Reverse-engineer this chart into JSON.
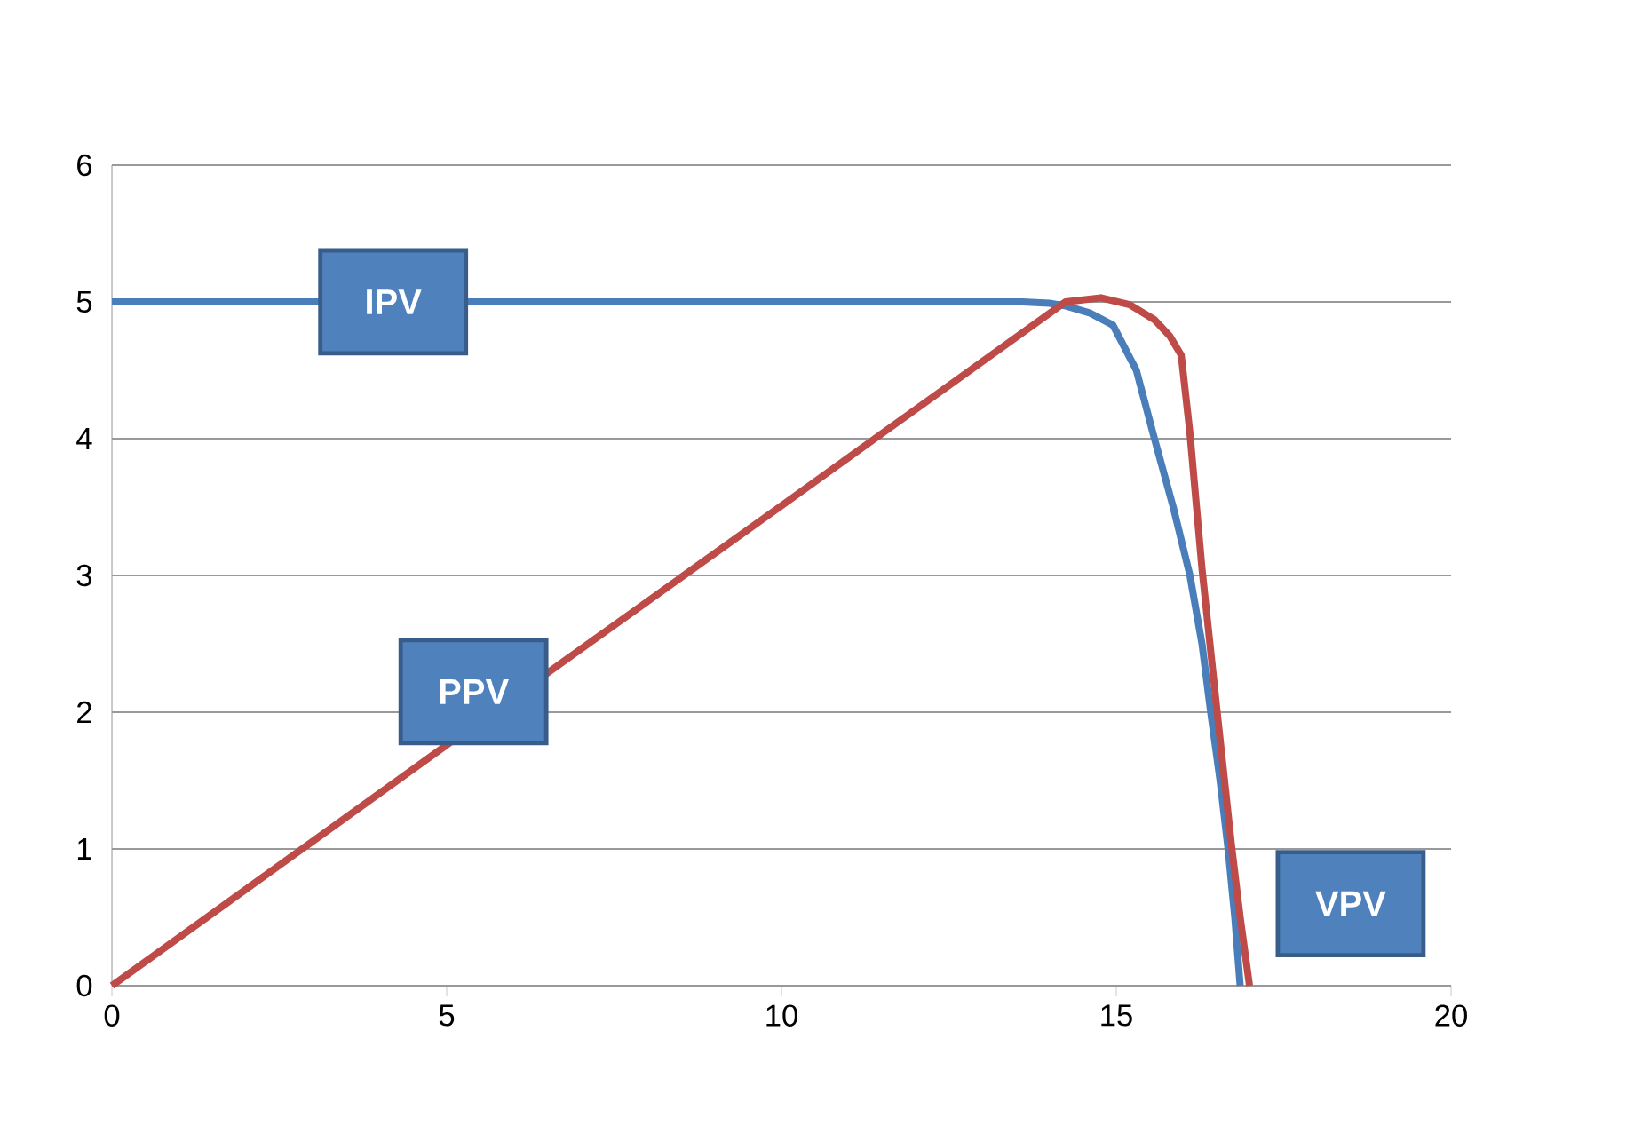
{
  "chart_data": {
    "type": "line",
    "xlabel": "VPV",
    "x": [
      0,
      2,
      6,
      8,
      10,
      12,
      13,
      13.6,
      14.0,
      14.25,
      14.6,
      14.95,
      15.3,
      15.57,
      15.85,
      16.1,
      16.28,
      16.41,
      16.55,
      16.67,
      16.77,
      16.85
    ],
    "series": [
      {
        "name": "IPV",
        "color": "#4a7ebb",
        "values": [
          5.0,
          5.0,
          5.0,
          5.0,
          5.0,
          5.0,
          5.0,
          5.0,
          4.99,
          4.97,
          4.92,
          4.83,
          4.5,
          4.0,
          3.5,
          3.0,
          2.5,
          2.0,
          1.5,
          1.0,
          0.5,
          0
        ]
      },
      {
        "name": "PPV",
        "color": "#be4b48",
        "x": [
          0,
          5,
          10,
          14.24,
          14.77,
          15.2,
          15.57,
          15.8,
          15.97,
          16.1,
          16.28,
          16.5,
          16.72,
          16.85,
          16.99
        ],
        "values": [
          0,
          1.76,
          3.51,
          5.0,
          5.03,
          4.98,
          4.87,
          4.75,
          4.61,
          4.04,
          3.05,
          2.03,
          1.03,
          0.5,
          0
        ]
      }
    ],
    "xlim": [
      0,
      20
    ],
    "ylim": [
      0,
      6
    ],
    "xticks": [
      0,
      5,
      10,
      15,
      20
    ],
    "yticks": [
      0,
      1,
      2,
      3,
      4,
      5,
      6
    ],
    "grid": "y",
    "legend": false,
    "marker": "none",
    "line_style": "solid"
  }
}
